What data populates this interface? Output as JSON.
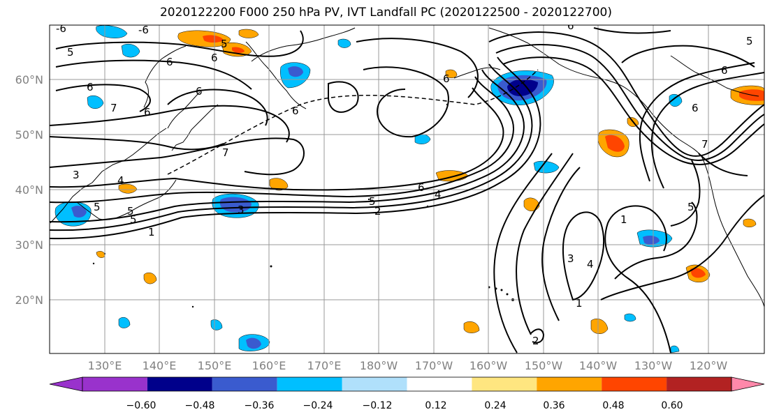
{
  "title": "2020122200 F000 250 hPa PV, IVT Landfall PC (2020122500 - 2020122700)",
  "lat_labels": [
    "60°N",
    "50°N",
    "40°N",
    "30°N",
    "20°N"
  ],
  "lon_labels": [
    "130°E",
    "140°E",
    "150°E",
    "160°E",
    "170°E",
    "180°W",
    "170°W",
    "160°W",
    "150°W",
    "140°W",
    "130°W",
    "120°W"
  ],
  "colorbar": {
    "ticks": [
      "−0.60",
      "−0.48",
      "−0.36",
      "−0.24",
      "−0.12",
      "0.12",
      "0.24",
      "0.36",
      "0.48",
      "0.60"
    ],
    "colors": [
      "#9932cc",
      "#00008b",
      "#3a5bcf",
      "#00bfff",
      "#b0e0fb",
      "#ffffff",
      "#ffe680",
      "#ffa500",
      "#ff4500",
      "#b22222",
      "#ff88aa"
    ]
  },
  "contour_labels": [
    "-6",
    "-6",
    "5",
    "5",
    "6",
    "6",
    "6",
    "6",
    "7",
    "6",
    "6",
    "5",
    "3",
    "4",
    "5",
    "1",
    "5",
    "3",
    "6",
    "4",
    "5",
    "2",
    "6",
    "7",
    "7",
    "1",
    "3",
    "4",
    "1",
    "2",
    "5",
    "6",
    "6",
    "5",
    "6"
  ]
}
